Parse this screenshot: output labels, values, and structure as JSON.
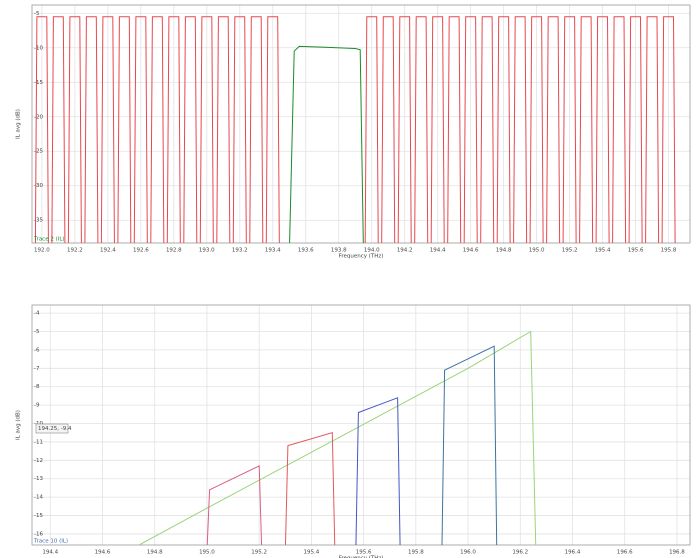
{
  "chart_data": [
    {
      "type": "line",
      "xlabel": "Frequency (THz)",
      "ylabel": "IL avg (dB)",
      "trace_label": "Trace 2 (IL)",
      "trace_color": "#1a8a2a",
      "xlim": [
        191.94,
        195.93
      ],
      "ylim": [
        -38.3,
        -3.8
      ],
      "xticks": [
        {
          "value": 192,
          "label": "192.0"
        },
        192.2,
        192.4,
        192.6,
        192.8,
        {
          "value": 193,
          "label": "193.0"
        },
        193.2,
        193.4,
        193.6,
        193.8,
        {
          "value": 194,
          "label": "194.0"
        },
        194.2,
        194.4,
        194.6,
        194.8,
        {
          "value": 195,
          "label": "195.0"
        },
        195.2,
        195.4,
        195.6,
        195.8
      ],
      "yticks": [
        -5,
        -10,
        -15,
        -20,
        -25,
        -30,
        -35
      ],
      "grid": true,
      "series": [
        {
          "name": "red",
          "color": "#e8484e",
          "x": [
            191.96,
            191.97,
            192.03,
            192.04,
            192.06,
            192.07,
            192.13,
            192.14,
            192.16,
            192.17,
            192.23,
            192.24,
            192.26,
            192.27,
            192.33,
            192.34,
            192.36,
            192.37,
            192.43,
            192.44,
            192.46,
            192.47,
            192.53,
            192.54,
            192.56,
            192.57,
            192.63,
            192.64,
            192.66,
            192.67,
            192.73,
            192.74,
            192.76,
            192.77,
            192.83,
            192.84,
            192.86,
            192.87,
            192.93,
            192.94,
            192.96,
            192.97,
            193.03,
            193.04,
            193.06,
            193.07,
            193.13,
            193.14,
            193.16,
            193.17,
            193.23,
            193.24,
            193.26,
            193.27,
            193.33,
            193.34,
            193.36,
            193.37,
            193.43,
            193.44,
            null,
            193.96,
            193.97,
            194.03,
            194.04,
            194.06,
            194.07,
            194.13,
            194.14,
            194.16,
            194.17,
            194.23,
            194.24,
            194.26,
            194.27,
            194.33,
            194.34,
            194.36,
            194.37,
            194.43,
            194.44,
            194.46,
            194.47,
            194.53,
            194.54,
            194.56,
            194.57,
            194.63,
            194.64,
            194.66,
            194.67,
            194.73,
            194.74,
            194.76,
            194.77,
            194.83,
            194.84,
            194.86,
            194.87,
            194.93,
            194.94,
            194.96,
            194.97,
            195.03,
            195.04,
            195.06,
            195.07,
            195.13,
            195.14,
            195.16,
            195.17,
            195.23,
            195.24,
            195.26,
            195.27,
            195.33,
            195.34,
            195.36,
            195.37,
            195.43,
            195.44,
            195.46,
            195.47,
            195.53,
            195.54,
            195.56,
            195.57,
            195.63,
            195.64,
            195.66,
            195.67,
            195.73,
            195.74,
            195.76,
            195.77,
            195.83,
            195.84
          ],
          "values": [
            -40,
            -5.5,
            -5.5,
            -40,
            -40,
            -5.5,
            -5.5,
            -40,
            -40,
            -5.5,
            -5.5,
            -40,
            -40,
            -5.5,
            -5.5,
            -40,
            -40,
            -5.5,
            -5.5,
            -40,
            -40,
            -5.5,
            -5.5,
            -40,
            -40,
            -5.5,
            -5.5,
            -40,
            -40,
            -5.5,
            -5.5,
            -40,
            -40,
            -5.5,
            -5.5,
            -40,
            -40,
            -5.5,
            -5.5,
            -40,
            -40,
            -5.5,
            -5.5,
            -40,
            -40,
            -5.5,
            -5.5,
            -40,
            -40,
            -5.5,
            -5.5,
            -40,
            -40,
            -5.5,
            -5.5,
            -40,
            -40,
            -5.5,
            -5.5,
            -40,
            null,
            -40,
            -5.5,
            -5.5,
            -40,
            -40,
            -5.5,
            -5.5,
            -40,
            -40,
            -5.5,
            -5.5,
            -40,
            -40,
            -5.5,
            -5.5,
            -40,
            -40,
            -5.5,
            -5.5,
            -40,
            -40,
            -5.5,
            -5.5,
            -40,
            -40,
            -5.5,
            -5.5,
            -40,
            -40,
            -5.5,
            -5.5,
            -40,
            -40,
            -5.5,
            -5.5,
            -40,
            -40,
            -5.5,
            -5.5,
            -40,
            -40,
            -5.5,
            -5.5,
            -40,
            -40,
            -5.5,
            -5.5,
            -40,
            -40,
            -5.5,
            -5.5,
            -40,
            -40,
            -5.5,
            -5.5,
            -40,
            -40,
            -5.5,
            -5.5,
            -40,
            -40,
            -5.5,
            -5.5,
            -40,
            -40,
            -5.5,
            -5.5,
            -40,
            -40,
            -5.5,
            -5.5,
            -40,
            -40,
            -5.5,
            -5.5,
            -40
          ]
        },
        {
          "name": "green",
          "color": "#1a8a2a",
          "x": [
            193.5,
            193.53,
            193.56,
            193.7,
            193.9,
            193.93,
            193.95
          ],
          "values": [
            -40,
            -10.5,
            -9.8,
            -9.9,
            -10.1,
            -10.3,
            -40
          ]
        }
      ]
    },
    {
      "type": "line",
      "xlabel": "Frequency (THz)",
      "ylabel": "IL avg (dB)",
      "trace_label": "Trace 10 (IL)",
      "trace_color": "#3a6ab0",
      "annotation": "194.25, -9.4",
      "xlim": [
        194.33,
        196.85
      ],
      "ylim": [
        -16.6,
        -3.56
      ],
      "xticks": [
        194.4,
        194.6,
        194.8,
        {
          "value": 195,
          "label": "195.0"
        },
        195.2,
        195.4,
        195.6,
        195.8,
        {
          "value": 196,
          "label": "196.0"
        },
        196.2,
        196.4,
        196.6,
        196.8
      ],
      "yticks": [
        -4,
        -5,
        -6,
        -7,
        -8,
        -9,
        -10,
        -11,
        -12,
        -13,
        -14,
        -15,
        -16
      ],
      "grid": true,
      "series": [
        {
          "name": "green",
          "color": "#9ad47a",
          "x": [
            194.74,
            195.0,
            195.25,
            195.5,
            195.75,
            196.0,
            196.24,
            196.26
          ],
          "values": [
            -16.6,
            -14.6,
            -12.7,
            -10.8,
            -8.9,
            -7.0,
            -5.0,
            -17
          ]
        },
        {
          "name": "pink",
          "color": "#d8607f",
          "x": [
            195.0,
            195.01,
            195.2,
            195.21
          ],
          "values": [
            -17,
            -13.6,
            -12.3,
            -17
          ]
        },
        {
          "name": "red",
          "color": "#e05a5a",
          "x": [
            195.3,
            195.31,
            195.48,
            195.49
          ],
          "values": [
            -17,
            -11.2,
            -10.5,
            -17
          ]
        },
        {
          "name": "blue",
          "color": "#4656c0",
          "x": [
            195.57,
            195.58,
            195.73,
            195.74
          ],
          "values": [
            -17,
            -9.4,
            -8.6,
            -17
          ]
        },
        {
          "name": "teal",
          "color": "#3a74a4",
          "x": [
            195.9,
            195.91,
            196.1,
            196.11
          ],
          "values": [
            -17,
            -7.1,
            -5.8,
            -17
          ]
        }
      ]
    }
  ]
}
